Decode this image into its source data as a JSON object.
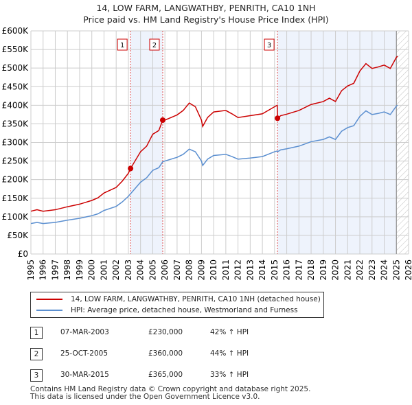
{
  "chart_data": {
    "type": "line",
    "title": "14, LOW FARM, LANGWATHBY, PENRITH, CA10 1NH",
    "subtitle": "Price paid vs. HM Land Registry's House Price Index (HPI)",
    "xlim": [
      1995,
      2026
    ],
    "ylim": [
      0,
      600000
    ],
    "x_ticks": [
      "1995",
      "1996",
      "1997",
      "1998",
      "1999",
      "2000",
      "2001",
      "2002",
      "2003",
      "2004",
      "2005",
      "2006",
      "2007",
      "2008",
      "2009",
      "2010",
      "2011",
      "2012",
      "2013",
      "2014",
      "2015",
      "2016",
      "2017",
      "2018",
      "2019",
      "2020",
      "2021",
      "2022",
      "2023",
      "2024",
      "2025",
      "2026"
    ],
    "y_ticks": [
      "£0",
      "£50K",
      "£100K",
      "£150K",
      "£200K",
      "£250K",
      "£300K",
      "£350K",
      "£400K",
      "£450K",
      "£500K",
      "£550K",
      "£600K"
    ],
    "grid": true,
    "forecast_from": 2025.0,
    "series": [
      {
        "name": "14, LOW FARM, LANGWATHBY, PENRITH, CA10 1NH (detached house)",
        "color": "#cc0000",
        "x": [
          1995,
          1995.5,
          1996,
          1997,
          1998,
          1999,
          2000,
          2000.5,
          2001,
          2002,
          2002.5,
          2003,
          2003.18,
          2004,
          2004.5,
          2005,
          2005.5,
          2005.82,
          2006,
          2007,
          2007.5,
          2008,
          2008.5,
          2009,
          2009.1,
          2009.5,
          2010,
          2011,
          2011.5,
          2012,
          2013,
          2014,
          2015,
          2015.22,
          2015.25,
          2015.5,
          2016,
          2017,
          2018,
          2019,
          2019.5,
          2020,
          2020.5,
          2021,
          2021.5,
          2022,
          2022.5,
          2023,
          2023.5,
          2024,
          2024.5,
          2025,
          2025.1
        ],
        "values": [
          115,
          119,
          115,
          119,
          127,
          134,
          144,
          151,
          164,
          179,
          196,
          217,
          230,
          275,
          290,
          322,
          332,
          360,
          360,
          374,
          386,
          406,
          396,
          360,
          343,
          367,
          382,
          386,
          377,
          367,
          372,
          377,
          396,
          400,
          365,
          372,
          376,
          386,
          402,
          410,
          419,
          410,
          439,
          452,
          459,
          492,
          512,
          499,
          503,
          508,
          499,
          529,
          532
        ]
      },
      {
        "name": "HPI: Average price, detached house, Westmorland and Furness",
        "color": "#5b8fd0",
        "x": [
          1995,
          1995.5,
          1996,
          1997,
          1998,
          1999,
          2000,
          2000.5,
          2001,
          2002,
          2002.5,
          2003,
          2003.18,
          2004,
          2004.5,
          2005,
          2005.5,
          2005.82,
          2006,
          2007,
          2007.5,
          2008,
          2008.5,
          2009,
          2009.1,
          2009.5,
          2010,
          2011,
          2011.5,
          2012,
          2013,
          2014,
          2015,
          2015.22,
          2015.25,
          2015.5,
          2016,
          2017,
          2018,
          2019,
          2019.5,
          2020,
          2020.5,
          2021,
          2021.5,
          2022,
          2022.5,
          2023,
          2023.5,
          2024,
          2024.5,
          2025,
          2025.1
        ],
        "values": [
          82,
          85,
          82,
          85,
          91,
          96,
          103,
          108,
          117,
          128,
          140,
          155,
          162,
          193,
          205,
          225,
          232,
          248,
          250,
          260,
          268,
          282,
          275,
          250,
          238,
          255,
          265,
          268,
          262,
          255,
          258,
          262,
          275,
          277,
          275,
          280,
          283,
          290,
          302,
          308,
          315,
          308,
          330,
          340,
          345,
          370,
          385,
          375,
          378,
          382,
          375,
          398,
          400
        ]
      }
    ],
    "value_units": "thousands GBP",
    "sales": [
      {
        "n": "1",
        "x": 2003.18,
        "value": 230
      },
      {
        "n": "2",
        "x": 2005.82,
        "value": 360
      },
      {
        "n": "3",
        "x": 2015.24,
        "value": 365
      }
    ]
  },
  "legend": {
    "property": "14, LOW FARM, LANGWATHBY, PENRITH, CA10 1NH (detached house)",
    "hpi": "HPI: Average price, detached house, Westmorland and Furness"
  },
  "transactions": [
    {
      "n": "1",
      "date": "07-MAR-2003",
      "price": "£230,000",
      "delta": "42% ↑ HPI"
    },
    {
      "n": "2",
      "date": "25-OCT-2005",
      "price": "£360,000",
      "delta": "44% ↑ HPI"
    },
    {
      "n": "3",
      "date": "30-MAR-2015",
      "price": "£365,000",
      "delta": "33% ↑ HPI"
    }
  ],
  "footer": [
    "Contains HM Land Registry data © Crown copyright and database right 2025.",
    "This data is licensed under the Open Government Licence v3.0."
  ]
}
